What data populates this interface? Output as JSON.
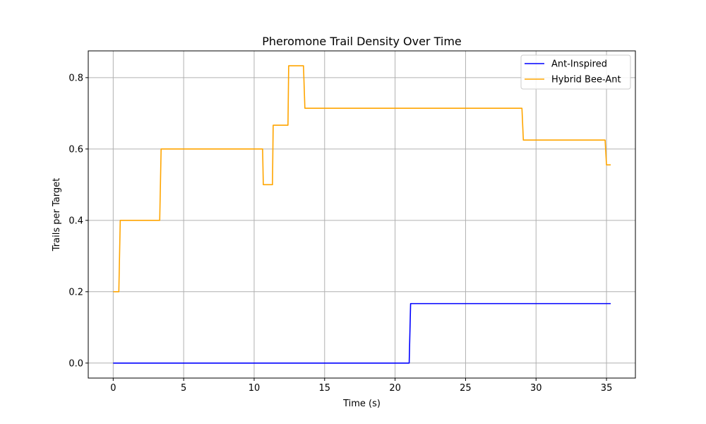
{
  "chart_data": {
    "type": "line",
    "step": true,
    "title": "Pheromone Trail Density Over Time",
    "xlabel": "Time (s)",
    "ylabel": "Trails per Target",
    "xlim": [
      -1.77,
      37.05
    ],
    "ylim": [
      -0.042,
      0.875
    ],
    "xticks": [
      0,
      5,
      10,
      15,
      20,
      25,
      30,
      35
    ],
    "yticks": [
      0.0,
      0.2,
      0.4,
      0.6,
      0.8
    ],
    "xtick_labels": [
      "0",
      "5",
      "10",
      "15",
      "20",
      "25",
      "30",
      "35"
    ],
    "ytick_labels": [
      "0.0",
      "0.2",
      "0.4",
      "0.6",
      "0.8"
    ],
    "grid": true,
    "legend_position": "top-right",
    "series": [
      {
        "name": "Ant-Inspired",
        "color": "#0000ff",
        "x": [
          0,
          21.0,
          21.1,
          35.3
        ],
        "y": [
          0.0,
          0.0,
          0.1667,
          0.1667
        ]
      },
      {
        "name": "Hybrid Bee-Ant",
        "color": "#ffa500",
        "x": [
          0,
          0.4,
          0.5,
          3.3,
          3.4,
          10.6,
          10.65,
          11.3,
          11.35,
          12.4,
          12.45,
          13.5,
          13.6,
          29.0,
          29.1,
          34.9,
          35.0,
          35.3
        ],
        "y": [
          0.2,
          0.2,
          0.4,
          0.4,
          0.6,
          0.6,
          0.5,
          0.5,
          0.6667,
          0.6667,
          0.8333,
          0.8333,
          0.7143,
          0.7143,
          0.625,
          0.625,
          0.5556,
          0.5556
        ]
      }
    ]
  }
}
